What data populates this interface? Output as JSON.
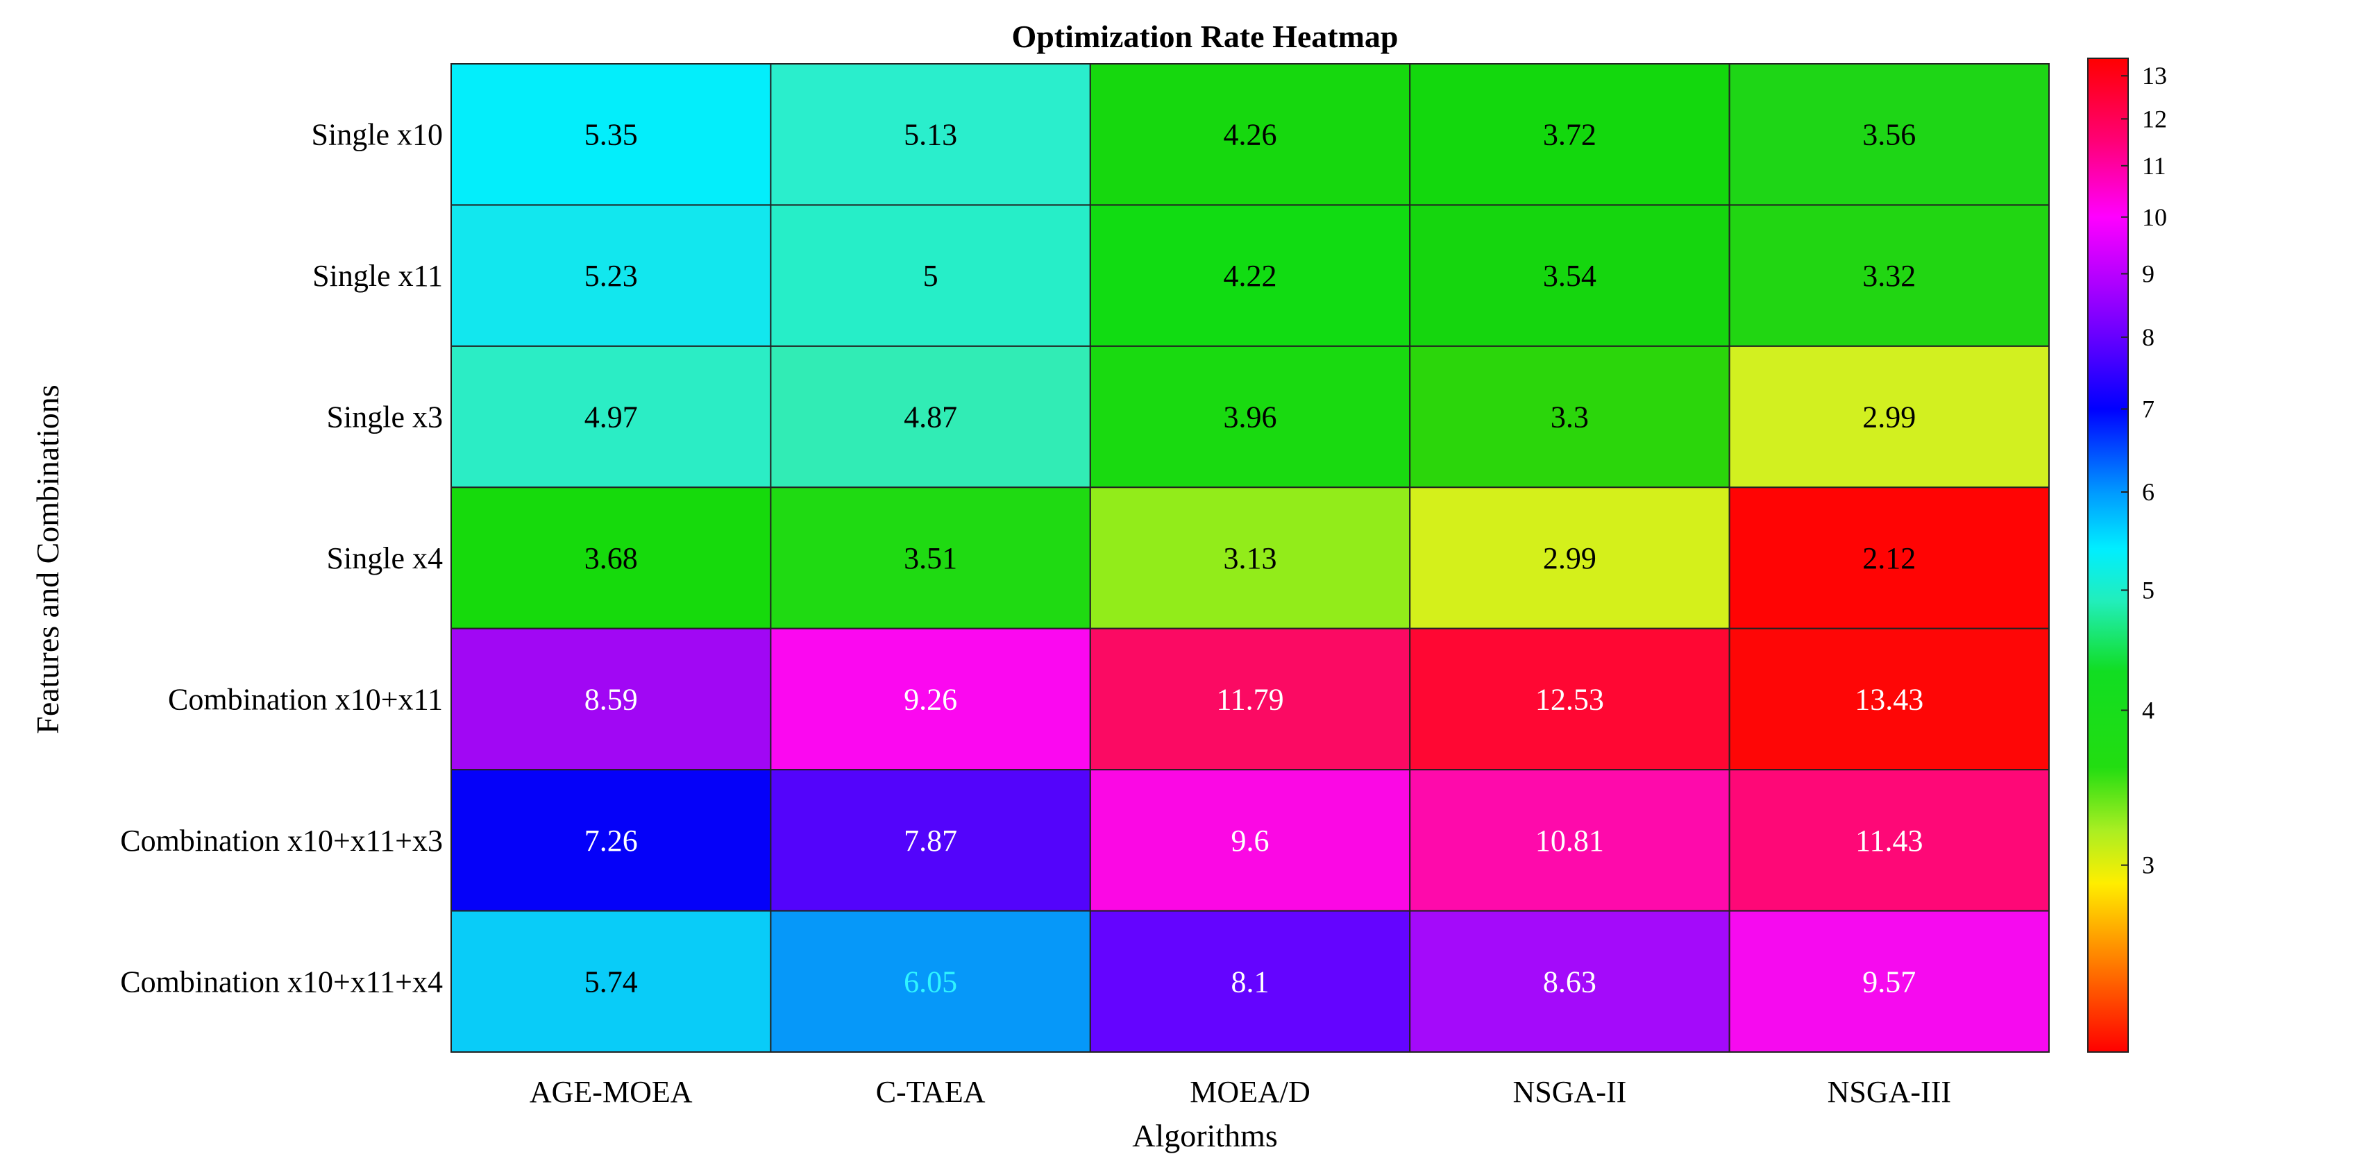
{
  "chart_data": {
    "type": "heatmap",
    "title": "Optimization Rate Heatmap",
    "xlabel": "Algorithms",
    "ylabel": "Features and Combinations",
    "columns": [
      "AGE-MOEA",
      "C-TAEA",
      "MOEA/D",
      "NSGA-II",
      "NSGA-III"
    ],
    "rows": [
      "Single x10",
      "Single x11",
      "Single x3",
      "Single x4",
      "Combination x10+x11",
      "Combination x10+x11+x3",
      "Combination x10+x11+x4"
    ],
    "values": [
      [
        5.35,
        5.13,
        4.26,
        3.72,
        3.56
      ],
      [
        5.23,
        5,
        4.22,
        3.54,
        3.32
      ],
      [
        4.97,
        4.87,
        3.96,
        3.3,
        2.99
      ],
      [
        3.68,
        3.51,
        3.13,
        2.99,
        2.12
      ],
      [
        8.59,
        9.26,
        11.79,
        12.53,
        13.43
      ],
      [
        7.26,
        7.87,
        9.6,
        10.81,
        11.43
      ],
      [
        5.74,
        6.05,
        8.1,
        8.63,
        9.57
      ]
    ],
    "value_labels": [
      [
        "5.35",
        "5.13",
        "4.26",
        "3.72",
        "3.56"
      ],
      [
        "5.23",
        "5",
        "4.22",
        "3.54",
        "3.32"
      ],
      [
        "4.97",
        "4.87",
        "3.96",
        "3.3",
        "2.99"
      ],
      [
        "3.68",
        "3.51",
        "3.13",
        "2.99",
        "2.12"
      ],
      [
        "8.59",
        "9.26",
        "11.79",
        "12.53",
        "13.43"
      ],
      [
        "7.26",
        "7.87",
        "9.6",
        "10.81",
        "11.43"
      ],
      [
        "5.74",
        "6.05",
        "8.1",
        "8.63",
        "9.57"
      ]
    ],
    "cell_colors": [
      [
        "#03EEFB",
        "#2AEECC",
        "#16D80E",
        "#13D80D",
        "#1ED616"
      ],
      [
        "#12E7EE",
        "#26EEC8",
        "#11DC12",
        "#15D60E",
        "#21D612"
      ],
      [
        "#2BEDC5",
        "#31ECB5",
        "#19DA10",
        "#2BD60B",
        "#D2F020"
      ],
      [
        "#16DA0C",
        "#1FDA12",
        "#92EC1A",
        "#D4F01B",
        "#FF0404"
      ],
      [
        "#A107F4",
        "#FB08F0",
        "#FB0A63",
        "#FF0733",
        "#FE0606"
      ],
      [
        "#0501F9",
        "#5304FB",
        "#FB08E4",
        "#FE0AAB",
        "#FE0877"
      ],
      [
        "#09CCF8",
        "#0698F9",
        "#6404FF",
        "#A40AFA",
        "#F60AEF"
      ]
    ],
    "label_colors": [
      [
        "#000000",
        "#000000",
        "#000000",
        "#000000",
        "#000000"
      ],
      [
        "#000000",
        "#000000",
        "#000000",
        "#000000",
        "#000000"
      ],
      [
        "#000000",
        "#000000",
        "#000000",
        "#000000",
        "#000000"
      ],
      [
        "#000000",
        "#000000",
        "#000000",
        "#000000",
        "#000000"
      ],
      [
        "#ffffff",
        "#ffffff",
        "#ffffff",
        "#ffffff",
        "#ffffff"
      ],
      [
        "#ffffff",
        "#ffffff",
        "#ffffff",
        "#ffffff",
        "#ffffff"
      ],
      [
        "#000000",
        "#30f4ff",
        "#ffffff",
        "#ffffff",
        "#ffffff"
      ]
    ],
    "colorbar": {
      "scale": "log",
      "range": [
        2.12,
        13.43
      ],
      "ticks": [
        3,
        4,
        5,
        6,
        7,
        8,
        9,
        10,
        11,
        12,
        13
      ],
      "tick_labels": [
        "3",
        "4",
        "5",
        "6",
        "7",
        "8",
        "9",
        "10",
        "11",
        "12",
        "13"
      ],
      "stops": [
        {
          "value": 2.12,
          "color": "#FF0000"
        },
        {
          "value": 2.6,
          "color": "#FF9900"
        },
        {
          "value": 2.9,
          "color": "#FFEE00"
        },
        {
          "value": 3.2,
          "color": "#AAEE22"
        },
        {
          "value": 3.6,
          "color": "#22DD11"
        },
        {
          "value": 4.3,
          "color": "#11DD22"
        },
        {
          "value": 4.9,
          "color": "#22EEBB"
        },
        {
          "value": 5.4,
          "color": "#00EEFF"
        },
        {
          "value": 6.0,
          "color": "#0099FF"
        },
        {
          "value": 7.0,
          "color": "#0000FF"
        },
        {
          "value": 8.0,
          "color": "#6600FF"
        },
        {
          "value": 8.8,
          "color": "#AA00FF"
        },
        {
          "value": 10.0,
          "color": "#FF00FF"
        },
        {
          "value": 11.5,
          "color": "#FF0077"
        },
        {
          "value": 13.43,
          "color": "#FF0000"
        }
      ]
    }
  }
}
